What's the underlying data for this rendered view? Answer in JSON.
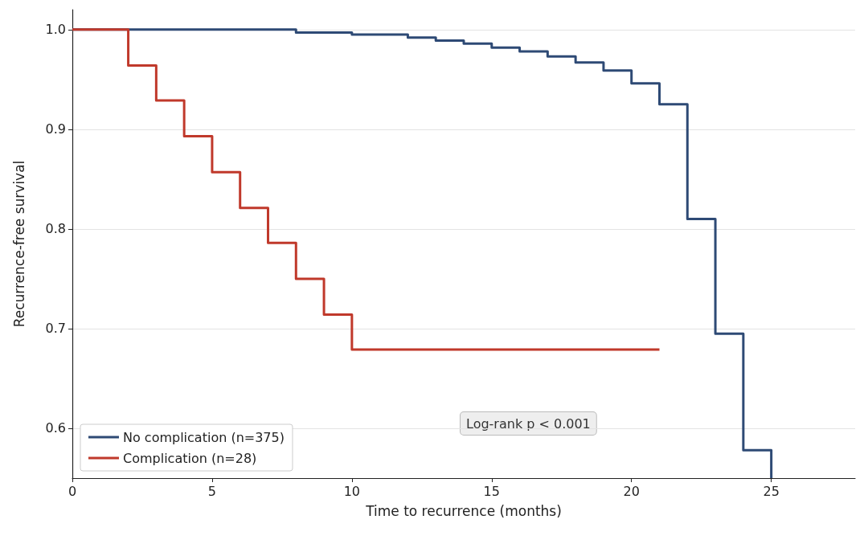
{
  "chart_data": {
    "type": "step",
    "xlabel": "Time to recurrence (months)",
    "ylabel": "Recurrence-free survival",
    "xlim": [
      0,
      28
    ],
    "ylim": [
      0.55,
      1.02
    ],
    "xticks": [
      0,
      5,
      10,
      15,
      20,
      25
    ],
    "yticks": [
      {
        "value": 0.6,
        "label": "0.6"
      },
      {
        "value": 0.7,
        "label": "0.7"
      },
      {
        "value": 0.8,
        "label": "0.8"
      },
      {
        "value": 0.9,
        "label": "0.9"
      },
      {
        "value": 1.0,
        "label": "1.0"
      }
    ],
    "grid": "y",
    "legend": "bottom left",
    "annotations": [
      "Log-rank p < 0.001"
    ],
    "series": [
      {
        "name": "No complication (n=375)",
        "color": "#2e4a75",
        "x": [
          0,
          8,
          10,
          12,
          13,
          14,
          15,
          16,
          17,
          18,
          19,
          20,
          21,
          22,
          23,
          24,
          25
        ],
        "values": [
          1,
          0.997,
          0.995,
          0.992,
          0.989,
          0.986,
          0.982,
          0.978,
          0.973,
          0.967,
          0.959,
          0.946,
          0.925,
          0.81,
          0.695,
          0.578,
          0.55
        ]
      },
      {
        "name": "Complication (n=28)",
        "color": "#c0392b",
        "x": [
          0,
          2,
          3,
          4,
          5,
          6,
          7,
          8,
          9,
          10,
          21
        ],
        "values": [
          1,
          0.964,
          0.929,
          0.893,
          0.857,
          0.821,
          0.786,
          0.75,
          0.714,
          0.679,
          0.679
        ]
      }
    ]
  }
}
